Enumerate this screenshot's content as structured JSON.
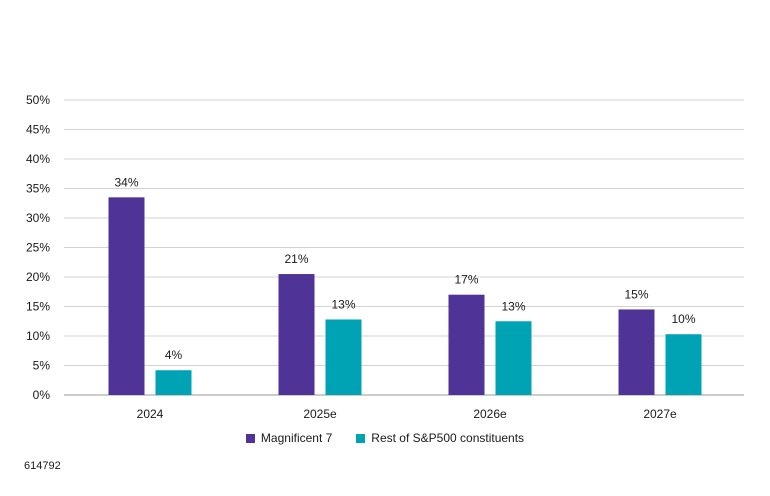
{
  "chart_data": {
    "type": "bar",
    "categories": [
      "2024",
      "2025e",
      "2026e",
      "2027e"
    ],
    "series": [
      {
        "name": "Magnificent 7",
        "values": [
          33.5,
          20.5,
          17,
          14.5
        ],
        "labels": [
          "34%",
          "21%",
          "17%",
          "15%"
        ],
        "color": "#4f3397"
      },
      {
        "name": "Rest of S&P500 constituents",
        "values": [
          4.2,
          12.8,
          12.5,
          10.3
        ],
        "labels": [
          "4%",
          "13%",
          "13%",
          "10%"
        ],
        "color": "#00a3b4"
      }
    ],
    "ylim": [
      0,
      50
    ],
    "yticks": [
      "0%",
      "5%",
      "10%",
      "15%",
      "20%",
      "25%",
      "30%",
      "35%",
      "40%",
      "45%",
      "50%"
    ],
    "grid": true,
    "legend_position": "bottom"
  },
  "footnote": "614792"
}
